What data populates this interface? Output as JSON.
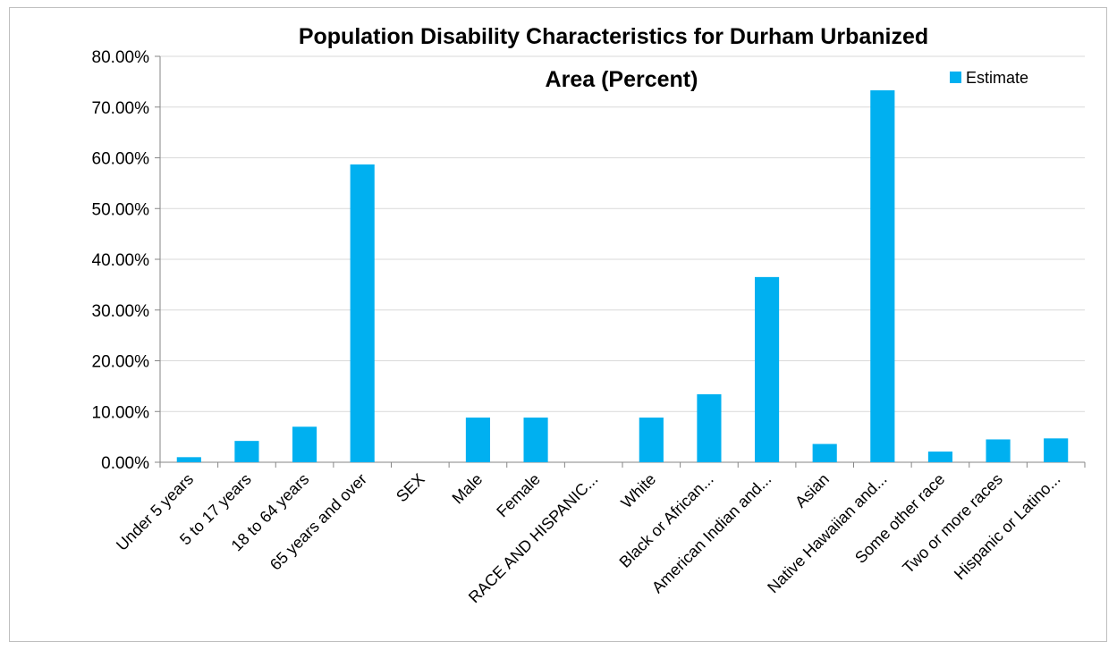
{
  "chart_data": {
    "type": "bar",
    "title": "Population Disability Characteristics  for Durham Urbanized Area (Percent)",
    "title_lines": [
      "Population Disability Characteristics  for Durham Urbanized",
      "Area (Percent)"
    ],
    "categories": [
      "Under 5 years",
      "5 to 17 years",
      "18 to 64 years",
      "65  years and over",
      "SEX",
      "Male",
      "Female",
      "RACE AND HISPANIC...",
      "White",
      "Black or African...",
      "American Indian and...",
      "Asian",
      "Native Hawaiian and...",
      "Some other race",
      "Two or more races",
      "Hispanic or Latino..."
    ],
    "series": [
      {
        "name": "Estimate",
        "color": "#00b0f0",
        "values": [
          1.0,
          4.2,
          7.0,
          58.7,
          null,
          8.8,
          8.8,
          null,
          8.8,
          13.4,
          36.5,
          3.6,
          73.3,
          2.1,
          4.5,
          4.7
        ]
      }
    ],
    "yticks": [
      "0.00%",
      "10.00%",
      "20.00%",
      "30.00%",
      "40.00%",
      "50.00%",
      "60.00%",
      "70.00%",
      "80.00%"
    ],
    "ylim": [
      0,
      80
    ],
    "grid": true,
    "legend_position": "top-right",
    "xlabel": "",
    "ylabel": ""
  }
}
